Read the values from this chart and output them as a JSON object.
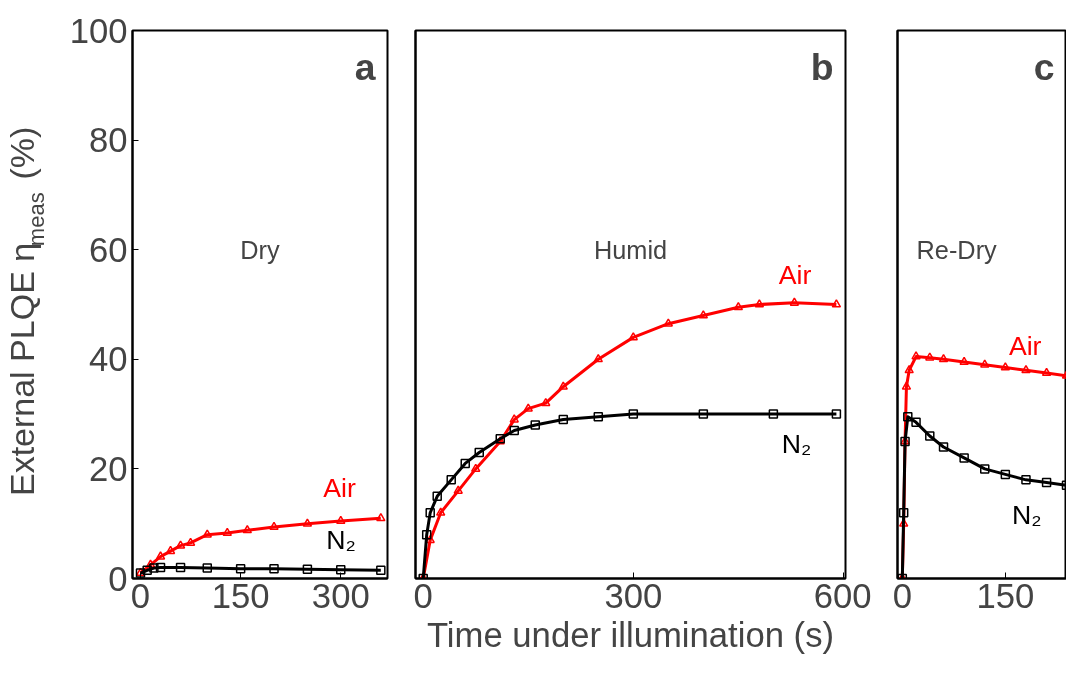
{
  "chart_data": [
    {
      "type": "line",
      "ylabel": "External PLQE η$_{meas}$ (%)",
      "xlim": [
        -12,
        370
      ],
      "xticks": [
        0,
        150,
        300
      ],
      "ylim": [
        0,
        100
      ],
      "yticks": [
        0,
        20,
        40,
        60,
        80,
        100
      ],
      "grid": false,
      "annotations": [
        "a",
        "Dry"
      ],
      "series": [
        {
          "name": "Air",
          "color": "#ff0000",
          "marker": "triangle",
          "x": [
            0,
            15,
            30,
            45,
            60,
            75,
            100,
            130,
            160,
            200,
            250,
            300,
            360
          ],
          "values": [
            1,
            2.5,
            4,
            5,
            6,
            6.5,
            8,
            8.3,
            8.8,
            9.4,
            10,
            10.5,
            11
          ]
        },
        {
          "name": "N₂",
          "color": "#000000",
          "marker": "square",
          "x": [
            0,
            10,
            20,
            30,
            60,
            100,
            150,
            200,
            250,
            300,
            360
          ],
          "values": [
            1,
            1.5,
            1.9,
            2,
            2,
            1.9,
            1.8,
            1.8,
            1.7,
            1.6,
            1.5
          ]
        }
      ]
    },
    {
      "type": "line",
      "xlabel": "Time under illumination (s)",
      "xlim": [
        -11,
        603
      ],
      "xticks": [
        0,
        300,
        600
      ],
      "ylim": [
        0,
        100
      ],
      "grid": false,
      "tick_labels": "x",
      "annotations": [
        "b",
        "Humid"
      ],
      "series": [
        {
          "name": "Air",
          "color": "#ff0000",
          "marker": "triangle",
          "x": [
            0,
            10,
            25,
            50,
            75,
            110,
            130,
            150,
            175,
            200,
            250,
            300,
            350,
            400,
            450,
            480,
            530,
            590
          ],
          "values": [
            0,
            7,
            12,
            16,
            20,
            25,
            29,
            31,
            32,
            35,
            40,
            44,
            46.5,
            48,
            49.5,
            50,
            50.3,
            50
          ]
        },
        {
          "name": "N₂",
          "color": "#000000",
          "marker": "square",
          "x": [
            0,
            5,
            10,
            20,
            40,
            60,
            80,
            110,
            130,
            160,
            200,
            250,
            300,
            400,
            500,
            590
          ],
          "values": [
            0,
            8,
            12,
            15,
            18,
            21,
            23,
            25.5,
            27,
            28,
            29,
            29.5,
            30,
            30,
            30,
            30
          ]
        }
      ]
    },
    {
      "type": "line",
      "xlim": [
        -7,
        239
      ],
      "xticks": [
        0,
        150
      ],
      "ylim": [
        0,
        100
      ],
      "grid": false,
      "tick_labels": "x",
      "annotations": [
        "c",
        "Re-Dry"
      ],
      "series": [
        {
          "name": "Air",
          "color": "#ff0000",
          "marker": "triangle",
          "x": [
            0,
            2,
            4,
            6,
            10,
            20,
            40,
            60,
            90,
            120,
            150,
            180,
            210,
            239
          ],
          "values": [
            0,
            10,
            25,
            35,
            38,
            40.5,
            40.3,
            40,
            39.5,
            39,
            38.5,
            38,
            37.5,
            37
          ]
        },
        {
          "name": "N₂",
          "color": "#000000",
          "marker": "square",
          "x": [
            0,
            2,
            4,
            8,
            20,
            40,
            60,
            90,
            120,
            150,
            180,
            210,
            239
          ],
          "values": [
            0,
            12,
            25,
            29.5,
            28.5,
            26,
            24,
            22,
            20,
            19,
            18,
            17.5,
            17
          ]
        }
      ]
    }
  ]
}
